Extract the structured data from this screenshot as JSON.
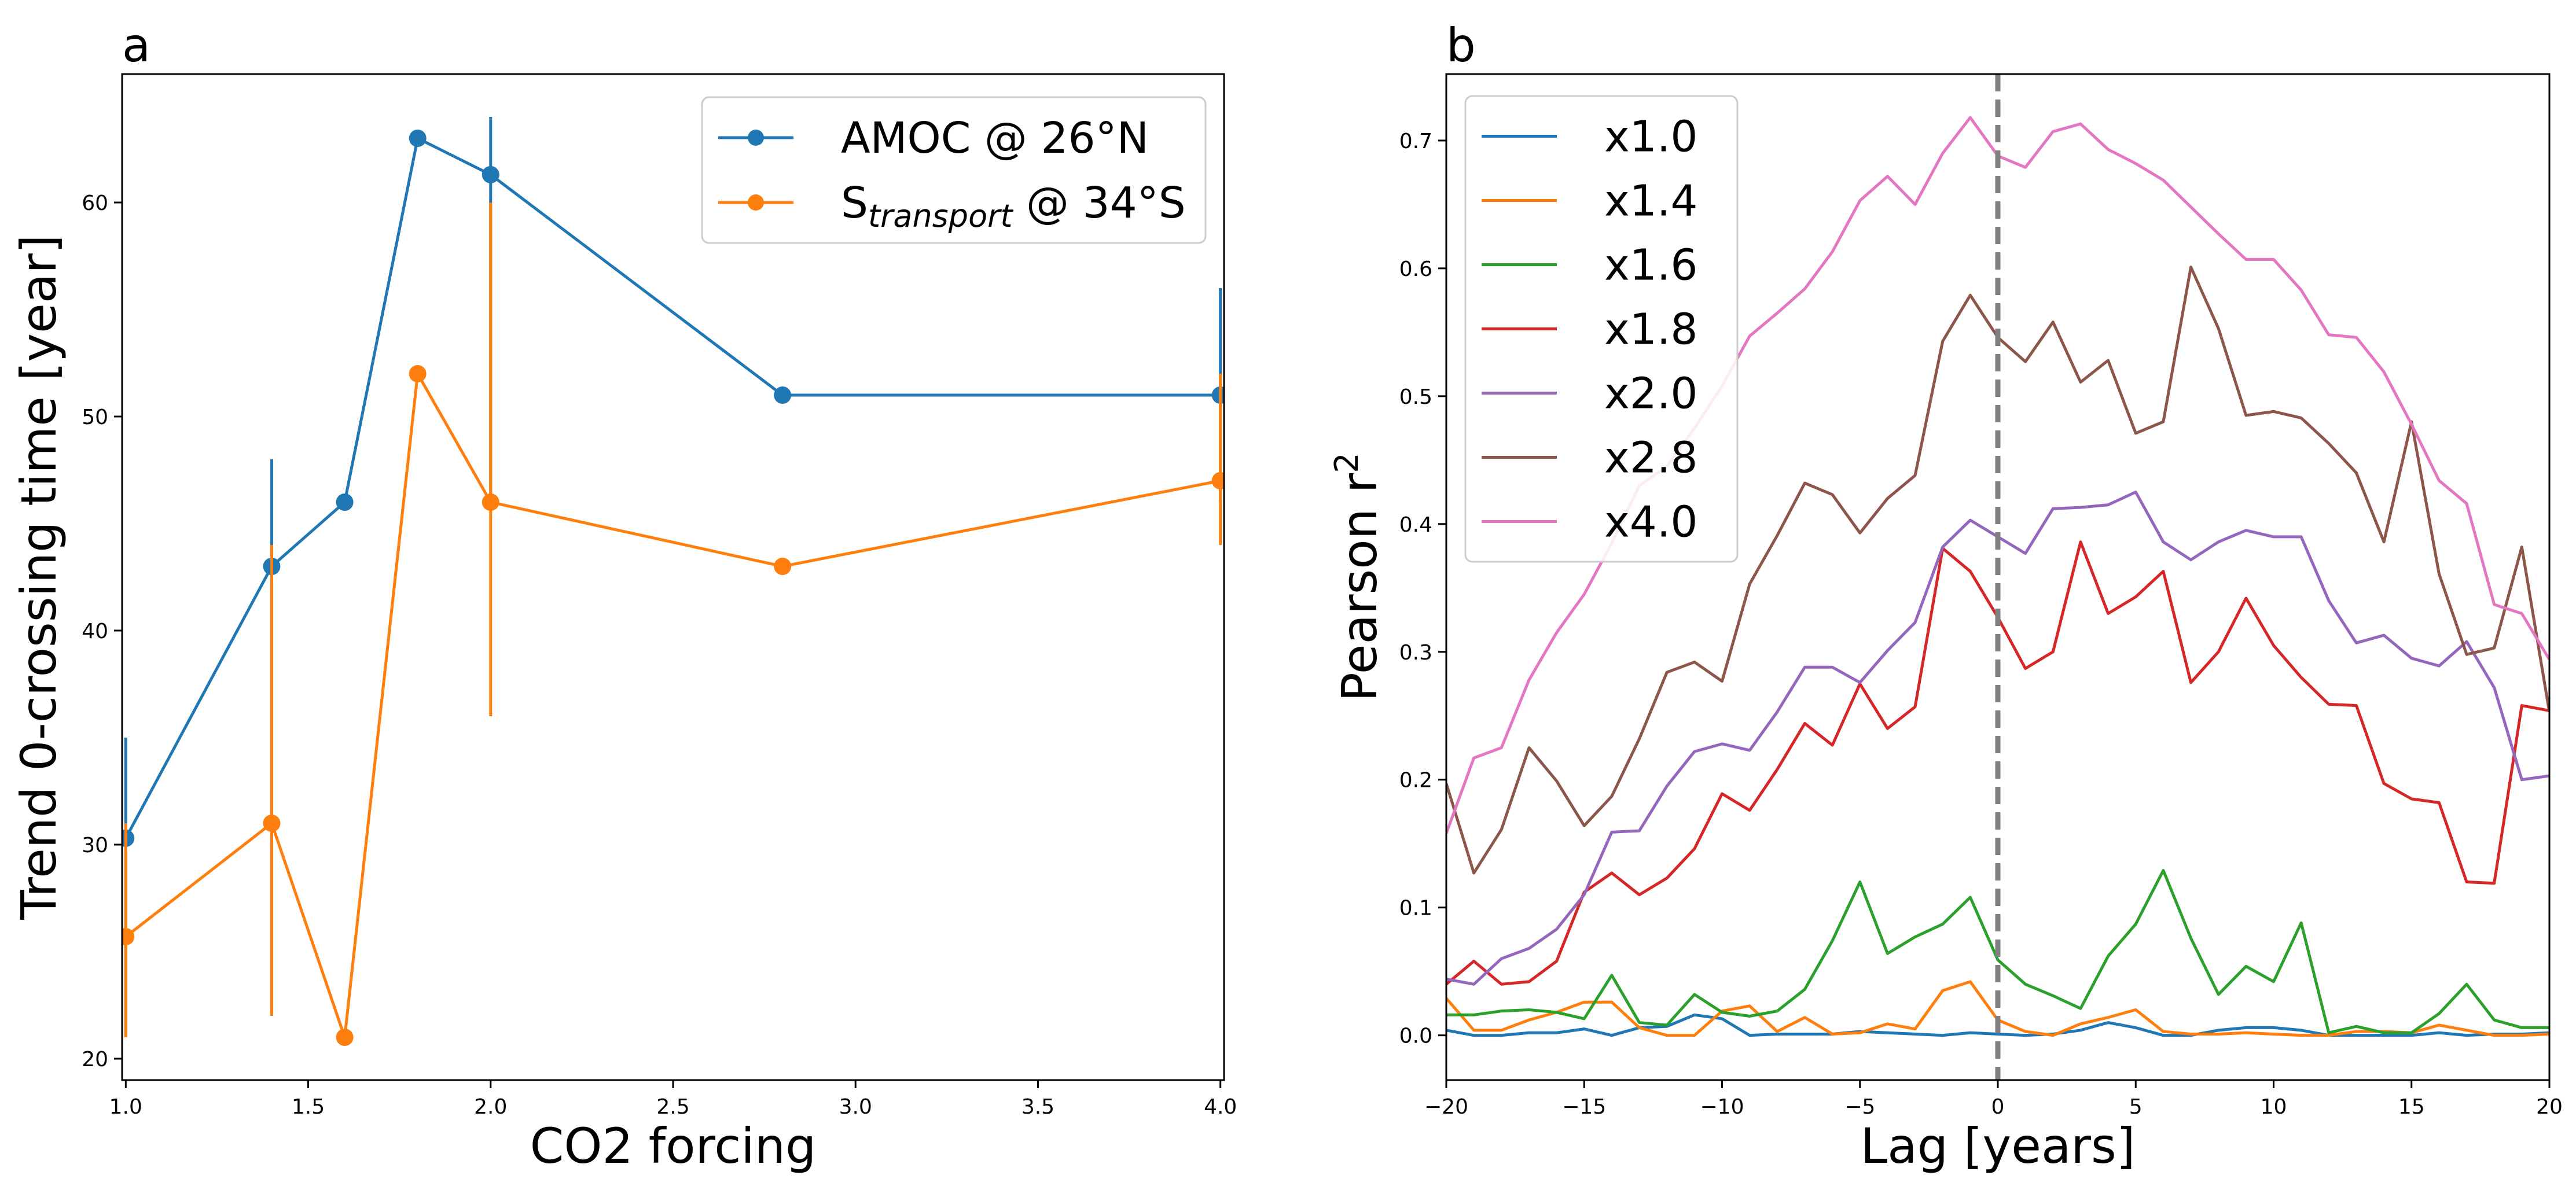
{
  "chart_data": [
    {
      "panel_label": "a",
      "type": "line",
      "xlabel": "CO2 forcing",
      "ylabel": "Trend 0-crossing time [year]",
      "xlim": [
        0.99,
        4.01
      ],
      "ylim": [
        19,
        66
      ],
      "x_ticks": [
        1.0,
        1.5,
        2.0,
        2.5,
        3.0,
        3.5,
        4.0
      ],
      "x_tick_labels": [
        "1.0",
        "1.5",
        "2.0",
        "2.5",
        "3.0",
        "3.5",
        "4.0"
      ],
      "y_ticks": [
        20,
        30,
        40,
        50,
        60
      ],
      "y_tick_labels": [
        "20",
        "30",
        "40",
        "50",
        "60"
      ],
      "grid": false,
      "legend_position": "top-right",
      "series": [
        {
          "name": "AMOC @ 26°N",
          "color": "#1f77b4",
          "x": [
            1.0,
            1.4,
            1.6,
            1.8,
            2.0,
            2.8,
            4.0
          ],
          "y": [
            30.3,
            43,
            46,
            63,
            61.3,
            51,
            51
          ],
          "error_low": [
            21,
            31,
            null,
            null,
            46,
            null,
            46
          ],
          "error_high": [
            35,
            48,
            null,
            null,
            64,
            null,
            56
          ]
        },
        {
          "name": "S_transport @ 34°S",
          "name_parts": {
            "main": "S",
            "subscript": "transport",
            "suffix": " @ 34°S"
          },
          "color": "#ff7f0e",
          "x": [
            1.0,
            1.4,
            1.6,
            1.8,
            2.0,
            2.8,
            4.0
          ],
          "y": [
            25.7,
            31,
            21,
            52,
            46,
            43,
            47
          ],
          "error_low": [
            21,
            22,
            null,
            null,
            36,
            null,
            44
          ],
          "error_high": [
            31,
            44,
            null,
            null,
            60,
            null,
            52
          ]
        }
      ]
    },
    {
      "panel_label": "b",
      "type": "line",
      "xlabel": "Lag [years]",
      "ylabel": "Pearson r²",
      "ylabel_parts": {
        "main": "Pearson r",
        "superscript": "2"
      },
      "xlim": [
        -20,
        20
      ],
      "ylim": [
        -0.035,
        0.752
      ],
      "x_ticks": [
        -20,
        -15,
        -10,
        -5,
        0,
        5,
        10,
        15,
        20
      ],
      "x_tick_labels": [
        "−20",
        "−15",
        "−10",
        "−5",
        "0",
        "5",
        "10",
        "15",
        "20"
      ],
      "y_ticks": [
        0.0,
        0.1,
        0.2,
        0.3,
        0.4,
        0.5,
        0.6,
        0.7
      ],
      "y_tick_labels": [
        "0.0",
        "0.1",
        "0.2",
        "0.3",
        "0.4",
        "0.5",
        "0.6",
        "0.7"
      ],
      "reference_line": {
        "x": 0,
        "style": "dashed",
        "color": "#7f7f7f"
      },
      "grid": false,
      "legend_position": "top-left",
      "x": [
        -20,
        -19,
        -18,
        -17,
        -16,
        -15,
        -14,
        -13,
        -12,
        -11,
        -10,
        -9,
        -8,
        -7,
        -6,
        -5,
        -4,
        -3,
        -2,
        -1,
        0,
        1,
        2,
        3,
        4,
        5,
        6,
        7,
        8,
        9,
        10,
        11,
        12,
        13,
        14,
        15,
        16,
        17,
        18,
        19,
        20
      ],
      "series": [
        {
          "name": "x1.0",
          "color": "#1f77b4",
          "values": [
            0.004,
            0.0,
            0.0,
            0.002,
            0.002,
            0.005,
            0.0,
            0.006,
            0.007,
            0.016,
            0.013,
            0.0,
            0.001,
            0.001,
            0.001,
            0.003,
            0.002,
            0.001,
            0.0,
            0.002,
            0.001,
            0.0,
            0.001,
            0.004,
            0.01,
            0.006,
            0.0,
            0.0,
            0.004,
            0.006,
            0.006,
            0.004,
            0.0,
            0.0,
            0.0,
            0.0,
            0.002,
            0.0,
            0.001,
            0.001,
            0.002
          ]
        },
        {
          "name": "x1.4",
          "color": "#ff7f0e",
          "values": [
            0.029,
            0.004,
            0.004,
            0.012,
            0.018,
            0.026,
            0.026,
            0.006,
            0.0,
            0.0,
            0.019,
            0.023,
            0.003,
            0.014,
            0.001,
            0.002,
            0.009,
            0.005,
            0.035,
            0.042,
            0.012,
            0.003,
            0.0,
            0.009,
            0.014,
            0.02,
            0.003,
            0.001,
            0.001,
            0.002,
            0.001,
            0.0,
            0.0,
            0.003,
            0.003,
            0.002,
            0.008,
            0.004,
            0.0,
            0.0,
            0.001
          ]
        },
        {
          "name": "x1.6",
          "color": "#2ca02c",
          "values": [
            0.016,
            0.016,
            0.019,
            0.02,
            0.018,
            0.013,
            0.047,
            0.01,
            0.008,
            0.032,
            0.018,
            0.015,
            0.019,
            0.036,
            0.074,
            0.12,
            0.064,
            0.077,
            0.087,
            0.108,
            0.059,
            0.04,
            0.031,
            0.021,
            0.062,
            0.087,
            0.129,
            0.076,
            0.032,
            0.054,
            0.042,
            0.088,
            0.002,
            0.007,
            0.002,
            0.002,
            0.017,
            0.04,
            0.012,
            0.006,
            0.006
          ]
        },
        {
          "name": "x1.8",
          "color": "#d62728",
          "values": [
            0.04,
            0.058,
            0.04,
            0.042,
            0.058,
            0.112,
            0.127,
            0.11,
            0.123,
            0.146,
            0.189,
            0.176,
            0.208,
            0.244,
            0.227,
            0.275,
            0.24,
            0.257,
            0.381,
            0.363,
            0.327,
            0.287,
            0.3,
            0.386,
            0.33,
            0.343,
            0.363,
            0.276,
            0.3,
            0.342,
            0.305,
            0.28,
            0.259,
            0.258,
            0.197,
            0.185,
            0.182,
            0.12,
            0.119,
            0.258,
            0.254
          ]
        },
        {
          "name": "x2.0",
          "color": "#9467bd",
          "values": [
            0.044,
            0.04,
            0.06,
            0.068,
            0.083,
            0.11,
            0.159,
            0.16,
            0.195,
            0.222,
            0.228,
            0.223,
            0.253,
            0.288,
            0.288,
            0.276,
            0.301,
            0.323,
            0.382,
            0.403,
            0.39,
            0.377,
            0.412,
            0.413,
            0.415,
            0.425,
            0.386,
            0.372,
            0.386,
            0.395,
            0.39,
            0.39,
            0.34,
            0.307,
            0.313,
            0.295,
            0.289,
            0.308,
            0.272,
            0.2,
            0.203
          ]
        },
        {
          "name": "x2.8",
          "color": "#8c564b",
          "values": [
            0.197,
            0.127,
            0.161,
            0.225,
            0.199,
            0.164,
            0.187,
            0.232,
            0.284,
            0.292,
            0.277,
            0.353,
            0.391,
            0.432,
            0.423,
            0.393,
            0.42,
            0.438,
            0.543,
            0.579,
            0.546,
            0.527,
            0.558,
            0.511,
            0.528,
            0.471,
            0.48,
            0.601,
            0.553,
            0.485,
            0.488,
            0.483,
            0.463,
            0.44,
            0.386,
            0.48,
            0.361,
            0.298,
            0.303,
            0.382,
            0.253
          ]
        },
        {
          "name": "x4.0",
          "color": "#e377c2",
          "values": [
            0.158,
            0.217,
            0.225,
            0.278,
            0.315,
            0.345,
            0.385,
            0.43,
            0.445,
            0.475,
            0.508,
            0.547,
            0.565,
            0.584,
            0.613,
            0.653,
            0.672,
            0.65,
            0.69,
            0.718,
            0.688,
            0.679,
            0.707,
            0.713,
            0.693,
            0.682,
            0.669,
            0.648,
            0.627,
            0.607,
            0.607,
            0.583,
            0.548,
            0.546,
            0.519,
            0.478,
            0.434,
            0.416,
            0.337,
            0.33,
            0.294
          ]
        }
      ]
    }
  ]
}
